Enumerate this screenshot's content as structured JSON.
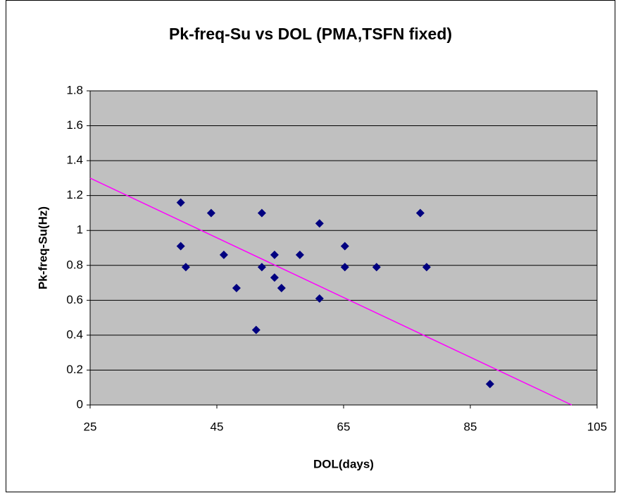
{
  "chart_data": {
    "type": "scatter",
    "title": "Pk-freq-Su vs DOL (PMA,TSFN fixed)",
    "x_label": "DOL(days)",
    "y_label": "Pk-freq-Su(Hz)",
    "series": [
      {
        "color": "#000080",
        "x": [
          39.3,
          39.3,
          40.1,
          44.1,
          46.1,
          48.1,
          51.2,
          52.1,
          52.1,
          54.1,
          54.1,
          55.2,
          58.1,
          61.2,
          61.2,
          65.2,
          65.2,
          70.2,
          77.1,
          78.1,
          88.1
        ],
        "values": [
          1.16,
          0.91,
          0.79,
          1.1,
          0.86,
          0.67,
          0.43,
          1.1,
          0.79,
          0.86,
          0.73,
          0.67,
          0.86,
          1.04,
          0.61,
          0.91,
          0.79,
          0.79,
          1.1,
          0.79,
          0.12
        ]
      }
    ],
    "trendline": {
      "color": "#ff00ff",
      "x": [
        25,
        101
      ],
      "values": [
        1.3,
        0
      ]
    },
    "xlim": [
      25,
      105
    ],
    "xticks": [
      25,
      45,
      65,
      85,
      105
    ],
    "ylim": [
      0,
      1.8
    ],
    "yticks": [
      0,
      0.2,
      0.4,
      0.6,
      0.8,
      1,
      1.2,
      1.4,
      1.6,
      1.8
    ],
    "grid": true,
    "plot_background": "#c0c0c0"
  }
}
